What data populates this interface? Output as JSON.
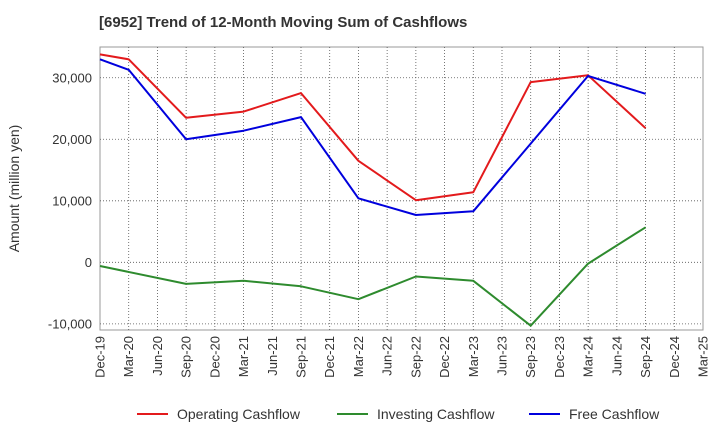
{
  "chart_data": {
    "type": "line",
    "title": "[6952]  Trend of 12-Month Moving Sum of Cashflows",
    "ylabel": "Amount (million yen)",
    "xlabel": "",
    "categories": [
      "Dec-19",
      "Mar-20",
      "Jun-20",
      "Sep-20",
      "Dec-20",
      "Mar-21",
      "Jun-21",
      "Sep-21",
      "Dec-21",
      "Mar-22",
      "Jun-22",
      "Sep-22",
      "Dec-22",
      "Mar-23",
      "Jun-23",
      "Sep-23",
      "Dec-23",
      "Mar-24",
      "Jun-24",
      "Sep-24",
      "Dec-24",
      "Mar-25"
    ],
    "ylim": [
      -11000,
      35000
    ],
    "yticks": [
      -10000,
      0,
      10000,
      20000,
      30000
    ],
    "ytick_labels": [
      "-10,000",
      "0",
      "10,000",
      "20,000",
      "30,000"
    ],
    "grid": true,
    "legend_position": "bottom",
    "series": [
      {
        "name": "Operating Cashflow",
        "color": "#e31a1c",
        "values": [
          33800,
          33000,
          null,
          23500,
          null,
          24500,
          null,
          27500,
          null,
          16500,
          null,
          10100,
          null,
          11400,
          null,
          29300,
          null,
          30400,
          null,
          21800,
          null,
          null
        ]
      },
      {
        "name": "Investing Cashflow",
        "color": "#2e8b2e",
        "values": [
          -600,
          null,
          null,
          -3500,
          null,
          -3000,
          null,
          -3900,
          null,
          -6000,
          null,
          -2300,
          null,
          -3000,
          null,
          -10300,
          null,
          -200,
          null,
          5700,
          null,
          null
        ]
      },
      {
        "name": "Free Cashflow",
        "color": "#0000dd",
        "values": [
          33000,
          31300,
          null,
          20000,
          null,
          21400,
          null,
          23600,
          null,
          10400,
          null,
          7700,
          null,
          8300,
          null,
          19300,
          null,
          30300,
          null,
          27400,
          null,
          null
        ]
      }
    ]
  }
}
